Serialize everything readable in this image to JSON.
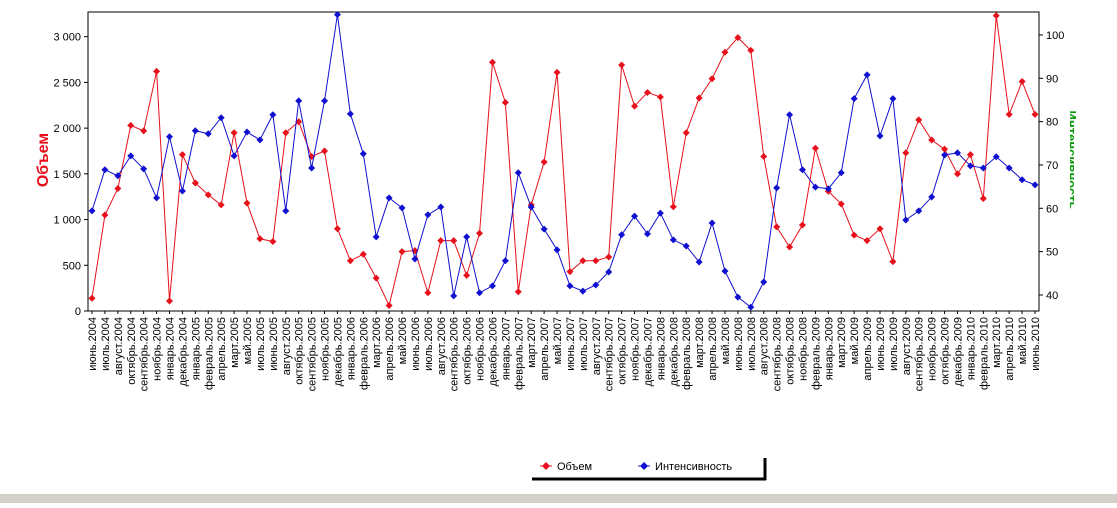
{
  "chart_data": {
    "type": "line",
    "y_label": "Объем",
    "y2_label": "Интенсивность",
    "categories": [
      "июнь.2004",
      "июль.2004",
      "август.2004",
      "октябрь.2004",
      "сентябрь.2004",
      "ноябрь.2004",
      "январь.2004",
      "декабрь.2004",
      "январь.2005",
      "февраль.2005",
      "апрель.2005",
      "март.2005",
      "май.2005",
      "июль.2005",
      "июнь.2005",
      "август.2005",
      "октябрь.2005",
      "сентябрь.2005",
      "ноябрь.2005",
      "декабрь.2005",
      "январь.2006",
      "февраль.2006",
      "март.2006",
      "апрель.2006",
      "май.2006",
      "июнь.2006",
      "июль.2006",
      "август.2006",
      "сентябрь.2006",
      "октябрь.2006",
      "ноябрь.2006",
      "декабрь.2006",
      "январь.2007",
      "февраль.2007",
      "март.2007",
      "апрель.2007",
      "май.2007",
      "июнь.2007",
      "июль.2007",
      "август.2007",
      "сентябрь.2007",
      "октябрь.2007",
      "ноябрь.2007",
      "декабрь.2007",
      "январь.2008",
      "декабрь.2008",
      "февраль.2008",
      "март.2008",
      "апрель.2008",
      "май.2008",
      "июнь.2008",
      "июль.2008",
      "август.2008",
      "сентябрь.2008",
      "октябрь.2008",
      "ноябрь.2008",
      "февраль.2009",
      "январь.2009",
      "март.2009",
      "май.2009",
      "апрель.2009",
      "июнь.2009",
      "июль.2009",
      "август.2009",
      "сентябрь.2009",
      "ноябрь.2009",
      "октябрь.2009",
      "декабрь.2009",
      "январь.2010",
      "февраль.2010",
      "март.2010",
      "апрель.2010",
      "май.2010",
      "июнь.2010"
    ],
    "series": [
      {
        "name": "Объем",
        "color": "#e8101a",
        "axis": "y",
        "values": [
          140,
          1050,
          1340,
          2030,
          1970,
          2620,
          110,
          1710,
          1400,
          1270,
          1160,
          1950,
          1180,
          790,
          760,
          1950,
          2070,
          1690,
          1750,
          900,
          550,
          620,
          360,
          60,
          650,
          660,
          200,
          770,
          770,
          390,
          850,
          2720,
          2280,
          210,
          1160,
          1630,
          2610,
          430,
          550,
          550,
          590,
          2690,
          2240,
          2390,
          2340,
          1140,
          1950,
          2330,
          2540,
          2830,
          2990,
          2850,
          1690,
          920,
          700,
          940,
          1780,
          1310,
          1170,
          830,
          770,
          900,
          540,
          1730,
          2090,
          1870,
          1770,
          1500,
          1710,
          1230,
          3230,
          2150,
          2510,
          2150
        ]
      },
      {
        "name": "Интенсивность",
        "color": "#1010d0",
        "axis": "y2",
        "values": [
          59.4,
          68.9,
          67.5,
          72.1,
          69.1,
          62.4,
          76.5,
          64.0,
          77.9,
          77.2,
          80.9,
          72.1,
          77.6,
          75.8,
          81.6,
          59.4,
          84.8,
          69.3,
          84.8,
          104.7,
          81.8,
          72.6,
          53.4,
          62.4,
          60.1,
          48.3,
          58.5,
          60.3,
          39.8,
          53.4,
          40.5,
          42.1,
          47.9,
          68.2,
          60.3,
          55.2,
          50.4,
          42.1,
          40.9,
          42.3,
          45.3,
          53.9,
          58.2,
          54.1,
          58.9,
          52.7,
          51.3,
          47.6,
          56.6,
          45.5,
          39.5,
          37.2,
          43.0,
          64.7,
          81.6,
          68.9,
          64.9,
          64.5,
          68.2,
          85.3,
          90.8,
          76.7,
          85.3,
          57.3,
          59.4,
          62.6,
          72.3,
          72.8,
          69.8,
          69.3,
          71.9,
          69.3,
          66.6,
          65.4
        ]
      }
    ],
    "ylim": [
      0,
      3270
    ],
    "yticks": [
      0,
      500,
      {
        "value": 1000,
        "label": "1 000"
      },
      {
        "value": 1500,
        "label": "1 500"
      },
      {
        "value": 2000,
        "label": "2 000"
      },
      {
        "value": 2500,
        "label": "2 500"
      },
      {
        "value": 3000,
        "label": "3 000"
      }
    ],
    "y2lim": [
      36.3,
      105.3
    ],
    "y2ticks": [
      40,
      50,
      60,
      70,
      80,
      90,
      100
    ],
    "y_label_color": "#e8101a",
    "y2_label_color": "#0a9a0a",
    "legend": "bottom"
  }
}
